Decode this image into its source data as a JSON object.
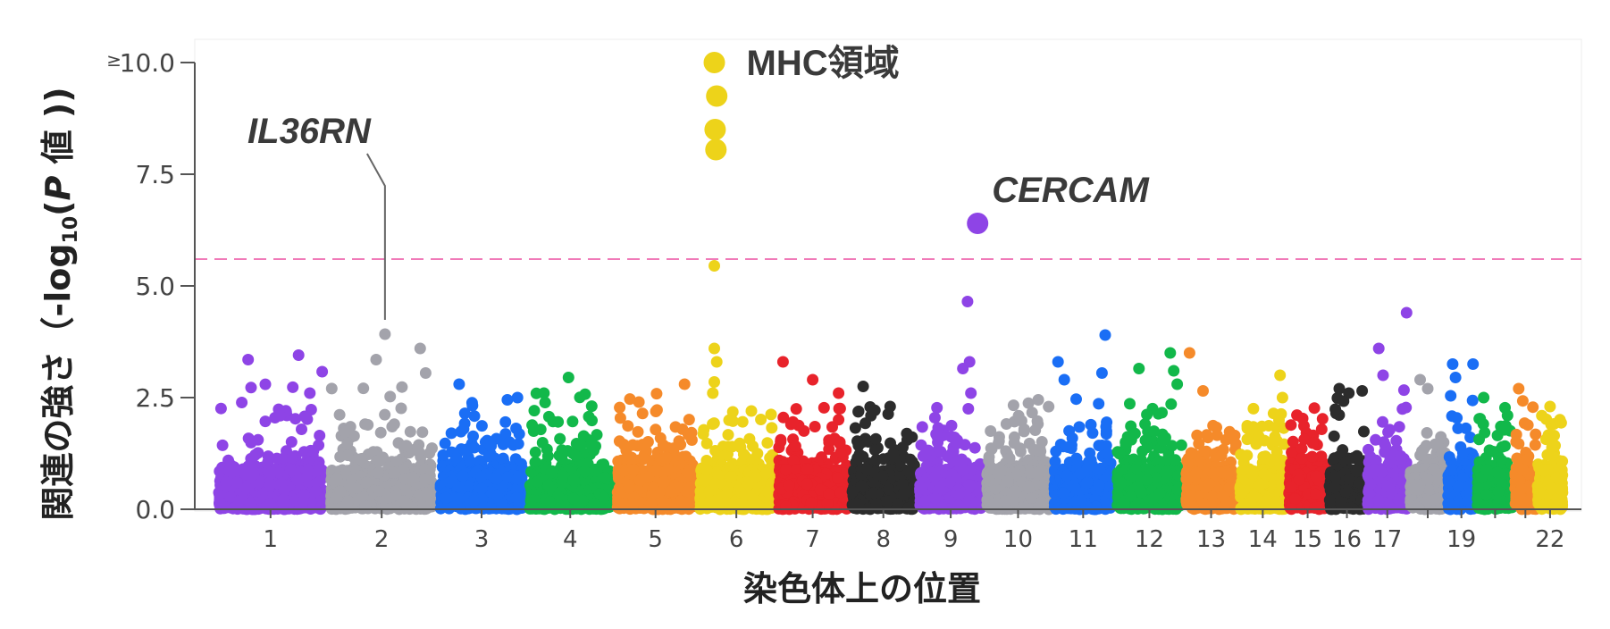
{
  "chart_data": {
    "type": "scatter",
    "subtype": "manhattan",
    "xlabel": "染色体上の位置",
    "ylabel_parts": [
      "関連の強さ（-log",
      "10",
      "(",
      "P",
      " 値 ))"
    ],
    "ylim": [
      0,
      10
    ],
    "y_ticks": [
      {
        "value": 0,
        "label": "0.0"
      },
      {
        "value": 2.5,
        "label": "2.5"
      },
      {
        "value": 5,
        "label": "5.0"
      },
      {
        "value": 7.5,
        "label": "7.5"
      },
      {
        "value": 10,
        "label": "10.0",
        "prefix": "≥"
      }
    ],
    "significance_threshold": 5.6,
    "threshold_color": "#f07ab8",
    "chromosomes": [
      {
        "chr": "1",
        "label": "1",
        "span": 1.0,
        "color": "#8e44e6",
        "max": 3.5,
        "peaks": [
          [
            0.3,
            3.35
          ],
          [
            0.75,
            3.45
          ],
          [
            0.85,
            2.6
          ]
        ]
      },
      {
        "chr": "2",
        "label": "2",
        "span": 0.98,
        "color": "#a3a3ab",
        "max": 3.0,
        "peaks": [
          [
            0.53,
            3.92
          ],
          [
            0.45,
            3.35
          ],
          [
            0.85,
            3.6
          ],
          [
            0.9,
            3.05
          ]
        ]
      },
      {
        "chr": "3",
        "label": "3",
        "span": 0.8,
        "color": "#1a6ef5",
        "max": 2.6,
        "peaks": [
          [
            0.25,
            2.8
          ],
          [
            0.9,
            2.5
          ]
        ]
      },
      {
        "chr": "4",
        "label": "4",
        "span": 0.78,
        "color": "#12b84a",
        "max": 2.6,
        "peaks": [
          [
            0.48,
            2.95
          ],
          [
            0.2,
            2.6
          ]
        ]
      },
      {
        "chr": "5",
        "label": "5",
        "span": 0.74,
        "color": "#f58a2a",
        "max": 2.6,
        "peaks": [
          [
            0.85,
            2.8
          ],
          [
            0.3,
            2.4
          ]
        ]
      },
      {
        "chr": "6",
        "label": "6",
        "span": 0.7,
        "color": "#edd31a",
        "max": 2.3,
        "peaks": [
          [
            0.22,
            10.0
          ],
          [
            0.25,
            9.25
          ],
          [
            0.23,
            8.5
          ],
          [
            0.24,
            8.05
          ],
          [
            0.22,
            5.45
          ],
          [
            0.22,
            3.6
          ],
          [
            0.25,
            3.3
          ],
          [
            0.22,
            2.85
          ],
          [
            0.2,
            2.6
          ]
        ]
      },
      {
        "chr": "7",
        "label": "7",
        "span": 0.66,
        "color": "#e8232b",
        "max": 2.5,
        "peaks": [
          [
            0.1,
            3.3
          ],
          [
            0.5,
            2.9
          ],
          [
            0.85,
            2.6
          ]
        ]
      },
      {
        "chr": "8",
        "label": "8",
        "span": 0.6,
        "color": "#2c2c2c",
        "max": 2.3,
        "peaks": [
          [
            0.2,
            2.75
          ],
          [
            0.6,
            2.3
          ]
        ]
      },
      {
        "chr": "9",
        "label": "9",
        "span": 0.6,
        "color": "#8e44e6",
        "max": 2.3,
        "peaks": [
          [
            0.9,
            6.4
          ],
          [
            0.75,
            4.65
          ],
          [
            0.78,
            3.3
          ],
          [
            0.68,
            3.15
          ],
          [
            0.8,
            2.6
          ]
        ]
      },
      {
        "chr": "10",
        "label": "10",
        "span": 0.6,
        "color": "#a3a3ab",
        "max": 2.4,
        "peaks": [
          [
            0.8,
            2.45
          ]
        ]
      },
      {
        "chr": "11",
        "label": "11",
        "span": 0.56,
        "color": "#1a6ef5",
        "max": 2.5,
        "peaks": [
          [
            0.1,
            3.3
          ],
          [
            0.85,
            3.9
          ],
          [
            0.8,
            3.05
          ],
          [
            0.2,
            2.9
          ]
        ]
      },
      {
        "chr": "12",
        "label": "12",
        "span": 0.62,
        "color": "#12b84a",
        "max": 2.6,
        "peaks": [
          [
            0.35,
            3.15
          ],
          [
            0.8,
            3.5
          ],
          [
            0.85,
            3.1
          ],
          [
            0.9,
            2.8
          ]
        ]
      },
      {
        "chr": "13",
        "label": "13",
        "span": 0.48,
        "color": "#f58a2a",
        "max": 2.0,
        "peaks": [
          [
            0.1,
            3.5
          ],
          [
            0.35,
            2.65
          ]
        ]
      },
      {
        "chr": "14",
        "label": "14",
        "span": 0.44,
        "color": "#edd31a",
        "max": 2.3,
        "peaks": [
          [
            0.85,
            3.0
          ],
          [
            0.9,
            2.5
          ]
        ]
      },
      {
        "chr": "15",
        "label": "15",
        "span": 0.36,
        "color": "#e8232b",
        "max": 2.3,
        "peaks": []
      },
      {
        "chr": "16",
        "label": "16",
        "span": 0.34,
        "color": "#2c2c2c",
        "max": 2.5,
        "peaks": [
          [
            0.3,
            2.7
          ],
          [
            0.55,
            2.6
          ],
          [
            0.9,
            2.65
          ]
        ]
      },
      {
        "chr": "17",
        "label": "17",
        "span": 0.38,
        "color": "#8e44e6",
        "max": 2.8,
        "peaks": [
          [
            0.95,
            4.4
          ],
          [
            0.3,
            3.6
          ],
          [
            0.4,
            3.0
          ]
        ]
      },
      {
        "chr": "18",
        "label": "",
        "span": 0.34,
        "color": "#a3a3ab",
        "max": 1.8,
        "peaks": [
          [
            0.3,
            2.9
          ],
          [
            0.5,
            2.7
          ]
        ]
      },
      {
        "chr": "19",
        "label": "19",
        "span": 0.26,
        "color": "#1a6ef5",
        "max": 2.7,
        "peaks": [
          [
            0.2,
            3.25
          ],
          [
            0.9,
            3.25
          ],
          [
            0.3,
            2.95
          ]
        ]
      },
      {
        "chr": "20",
        "label": "",
        "span": 0.34,
        "color": "#12b84a",
        "max": 2.3,
        "peaks": [
          [
            0.2,
            2.5
          ]
        ]
      },
      {
        "chr": "21",
        "label": "",
        "span": 0.2,
        "color": "#f58a2a",
        "max": 2.5,
        "peaks": [
          [
            0.2,
            2.7
          ]
        ]
      },
      {
        "chr": "22",
        "label": "22",
        "span": 0.24,
        "color": "#edd31a",
        "max": 2.1,
        "peaks": [
          [
            0.5,
            2.3
          ]
        ]
      }
    ],
    "annotations": [
      {
        "label": "MHC領域",
        "italic": false,
        "chr": "6",
        "pos": 0.22,
        "value": 10.0
      },
      {
        "label": "CERCAM",
        "italic": true,
        "chr": "9",
        "pos": 0.9,
        "value": 6.4
      },
      {
        "label": "IL36RN",
        "italic": true,
        "chr": "2",
        "pos": 0.53,
        "value": 3.92
      }
    ],
    "highlight_points": [
      {
        "chr": "6",
        "pos": 0.22,
        "value": 10.0
      },
      {
        "chr": "6",
        "pos": 0.25,
        "value": 9.25
      },
      {
        "chr": "6",
        "pos": 0.23,
        "value": 8.5
      },
      {
        "chr": "6",
        "pos": 0.24,
        "value": 8.05
      },
      {
        "chr": "9",
        "pos": 0.9,
        "value": 6.4
      }
    ]
  }
}
